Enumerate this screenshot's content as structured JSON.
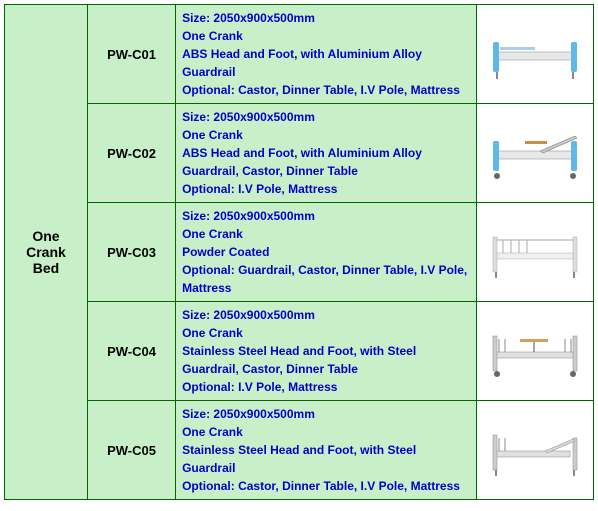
{
  "table": {
    "category_label": "One Crank Bed",
    "background_color": "#c8f0c8",
    "border_color": "#006600",
    "text_color_desc": "#0000cc",
    "text_color_label": "#000000",
    "font_size_label": 14,
    "font_size_code": 13,
    "font_size_desc": 12,
    "rows": [
      {
        "code": "PW-C01",
        "size": "Size: 2050x900x500mm",
        "crank": "One Crank",
        "feature": "ABS Head and Foot, with Aluminium Alloy Guardrail",
        "optional": "Optional: Castor, Dinner Table, I.V Pole, Mattress",
        "bed_style": "abs_blue"
      },
      {
        "code": "PW-C02",
        "size": "Size: 2050x900x500mm",
        "crank": "One Crank",
        "feature": "ABS Head and Foot, with Aluminium Alloy Guardrail, Castor, Dinner Table",
        "optional": "Optional: I.V Pole, Mattress",
        "bed_style": "abs_blue_table"
      },
      {
        "code": "PW-C03",
        "size": "Size: 2050x900x500mm",
        "crank": "One Crank",
        "feature": "Powder Coated",
        "optional": "Optional: Guardrail, Castor, Dinner Table, I.V Pole, Mattress",
        "bed_style": "white_simple"
      },
      {
        "code": "PW-C04",
        "size": "Size: 2050x900x500mm",
        "crank": "One Crank",
        "feature": "Stainless Steel Head and Foot, with Steel Guardrail, Castor, Dinner Table",
        "optional": "Optional: I.V Pole, Mattress",
        "bed_style": "steel_table"
      },
      {
        "code": "PW-C05",
        "size": "Size: 2050x900x500mm",
        "crank": "One Crank",
        "feature": "Stainless Steel Head and Foot, with Steel Guardrail",
        "optional": "Optional: Castor, Dinner Table, I.V Pole, Mattress",
        "bed_style": "steel_simple"
      }
    ]
  }
}
